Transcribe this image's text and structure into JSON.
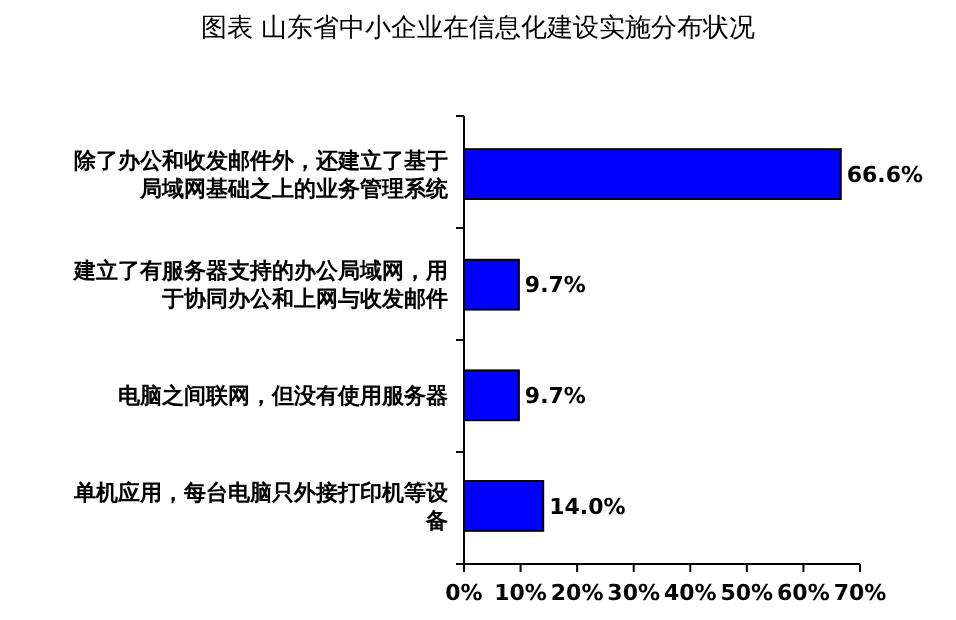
{
  "chart_data": {
    "type": "bar",
    "orientation": "horizontal",
    "title": "图表  山东省中小企业在信息化建设实施分布状况",
    "categories": [
      "除了办公和收发邮件外，还建立了基于局域网基础之上的业务管理系统",
      "建立了有服务器支持的办公局域网，用于协同办公和上网与收发邮件",
      "电脑之间联网，但没有使用服务器",
      "单机应用，每台电脑只外接打印机等设备"
    ],
    "values": [
      66.6,
      9.7,
      9.7,
      14.0
    ],
    "color": "#0000ff",
    "value_labels": [
      "66.6%",
      "9.7%",
      "9.7%",
      "14.0%"
    ],
    "xlim": [
      0,
      70
    ],
    "xticks": [
      {
        "value": 0,
        "label": "0%"
      },
      {
        "value": 10,
        "label": "10%"
      },
      {
        "value": 20,
        "label": "20%"
      },
      {
        "value": 30,
        "label": "30%"
      },
      {
        "value": 40,
        "label": "40%"
      },
      {
        "value": 50,
        "label": "50%"
      },
      {
        "value": 60,
        "label": "60%"
      },
      {
        "value": 70,
        "label": "70%"
      }
    ],
    "grid": false
  }
}
